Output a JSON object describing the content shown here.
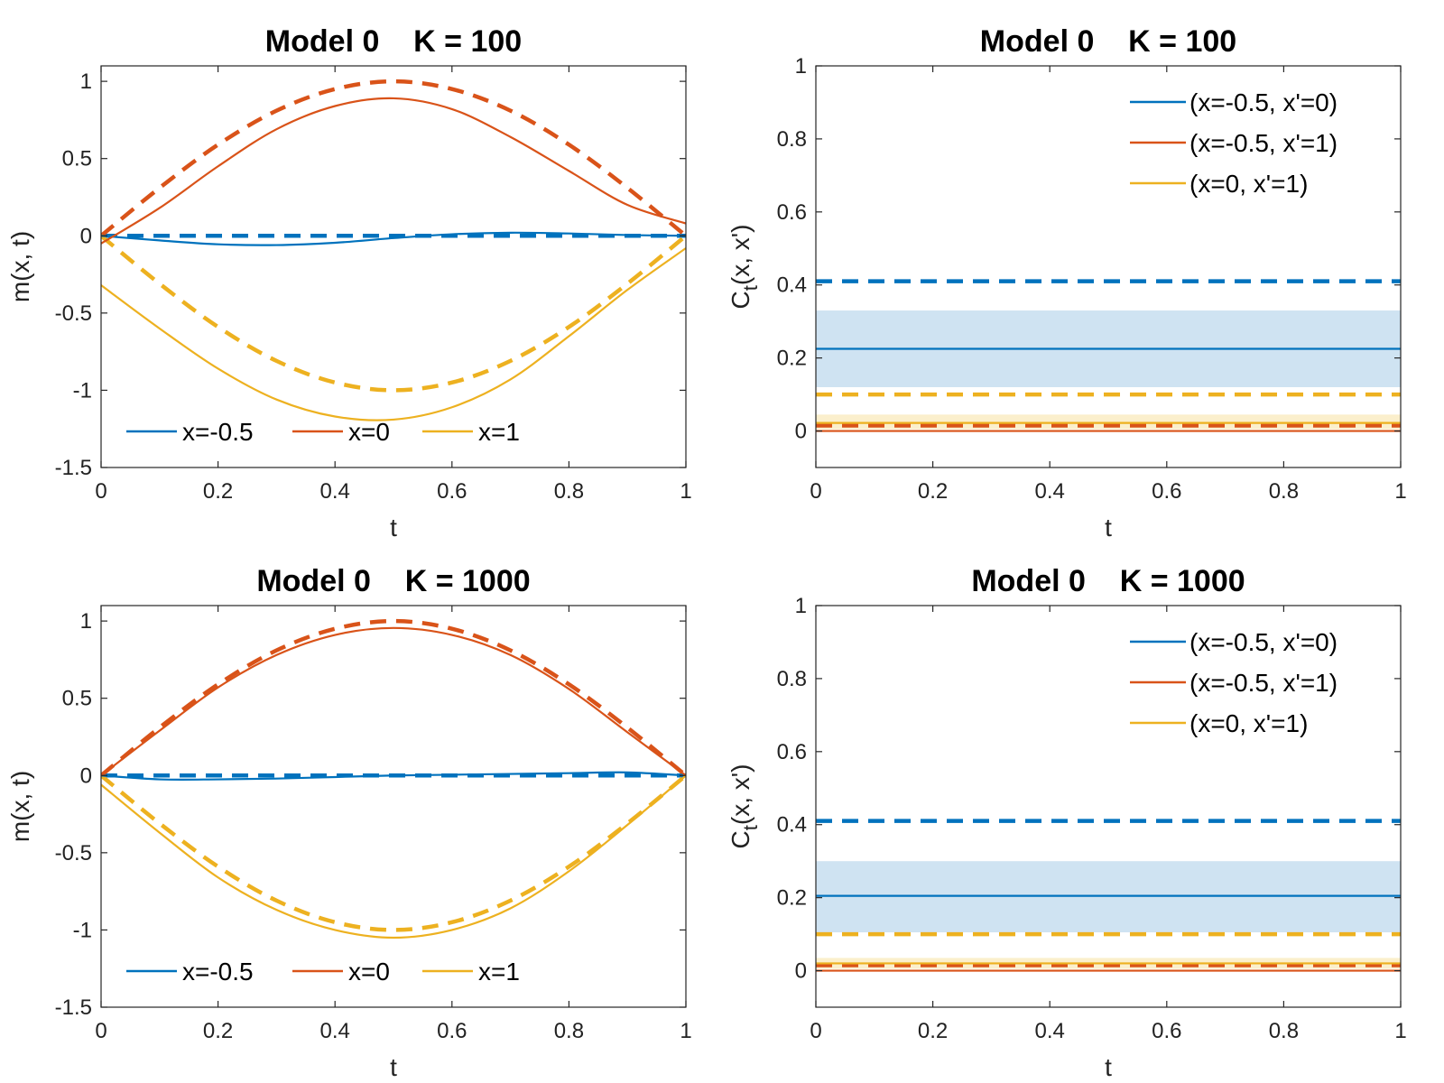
{
  "colors": {
    "blue": "#0072BD",
    "red": "#D95319",
    "yellow": "#EDB120",
    "band_blue": "#cfe3f2",
    "band_red": "#f7dccf",
    "band_yellow": "#fbefcc"
  },
  "chart_data": [
    {
      "type": "line",
      "title": "Model 0    K = 100",
      "xlabel": "t",
      "ylabel": "m(x, t)",
      "xlim": [
        0,
        1
      ],
      "ylim": [
        -1.5,
        1.1
      ],
      "xticks": [
        0,
        0.2,
        0.4,
        0.6,
        0.8,
        1
      ],
      "xtick_labels": [
        "0",
        "0.2",
        "0.4",
        "0.6",
        "0.8",
        "1"
      ],
      "yticks": [
        1,
        0.5,
        0,
        -0.5,
        -1,
        -1.5
      ],
      "ytick_labels": [
        "1",
        "0.5",
        "0",
        "-0.5",
        "-1",
        "-1.5"
      ],
      "legend_position": "bottom",
      "x": [
        0,
        0.1,
        0.2,
        0.3,
        0.4,
        0.5,
        0.6,
        0.7,
        0.8,
        0.9,
        1
      ],
      "series": [
        {
          "name": "x=-0.5",
          "color": "blue",
          "style": "solid",
          "values": [
            0,
            -0.03,
            -0.055,
            -0.06,
            -0.045,
            -0.015,
            0.01,
            0.02,
            0.015,
            0.005,
            0
          ]
        },
        {
          "name": "x=0",
          "color": "red",
          "style": "solid",
          "values": [
            -0.05,
            0.18,
            0.45,
            0.69,
            0.84,
            0.89,
            0.82,
            0.64,
            0.42,
            0.2,
            0.08
          ]
        },
        {
          "name": "x=1",
          "color": "yellow",
          "style": "solid",
          "values": [
            -0.32,
            -0.6,
            -0.86,
            -1.06,
            -1.17,
            -1.19,
            -1.11,
            -0.93,
            -0.65,
            -0.35,
            -0.08
          ]
        },
        {
          "name": "",
          "color": "blue",
          "style": "dashed",
          "values": [
            0,
            0,
            0,
            0,
            0,
            0,
            0,
            0,
            0,
            0,
            0
          ]
        },
        {
          "name": "",
          "color": "red",
          "style": "dashed",
          "values": [
            0,
            0.31,
            0.59,
            0.81,
            0.95,
            1.0,
            0.95,
            0.81,
            0.59,
            0.31,
            0
          ]
        },
        {
          "name": "",
          "color": "yellow",
          "style": "dashed",
          "values": [
            0,
            -0.31,
            -0.59,
            -0.81,
            -0.95,
            -1.0,
            -0.95,
            -0.81,
            -0.59,
            -0.31,
            0
          ]
        }
      ]
    },
    {
      "type": "line",
      "title": "Model 0    K = 100",
      "xlabel": "t",
      "ylabel_main": "C",
      "ylabel_sub": "t",
      "ylabel_rest": "(x, x')",
      "xlim": [
        0,
        1
      ],
      "ylim": [
        -0.1,
        1
      ],
      "xticks": [
        0,
        0.2,
        0.4,
        0.6,
        0.8,
        1
      ],
      "xtick_labels": [
        "0",
        "0.2",
        "0.4",
        "0.6",
        "0.8",
        "1"
      ],
      "yticks": [
        1,
        0.8,
        0.6,
        0.4,
        0.2,
        0
      ],
      "ytick_labels": [
        "1",
        "0.8",
        "0.6",
        "0.4",
        "0.2",
        "0"
      ],
      "legend_position": "top-right",
      "x": [
        0,
        1
      ],
      "bands": [
        {
          "color": "band_blue",
          "low": 0.12,
          "high": 0.33
        },
        {
          "color": "band_yellow",
          "low": 0.005,
          "high": 0.045
        }
      ],
      "series": [
        {
          "name": "(x=-0.5, x'=0)",
          "color": "blue",
          "style": "solid",
          "values": [
            0.225,
            0.225
          ]
        },
        {
          "name": "(x=-0.5, x'=1)",
          "color": "red",
          "style": "solid",
          "values": [
            0.0,
            0.0
          ]
        },
        {
          "name": "(x=0, x'=1)",
          "color": "yellow",
          "style": "solid",
          "values": [
            0.022,
            0.022
          ]
        },
        {
          "name": "",
          "color": "blue",
          "style": "dashed",
          "values": [
            0.41,
            0.41
          ]
        },
        {
          "name": "",
          "color": "yellow",
          "style": "dashed",
          "values": [
            0.1,
            0.1
          ]
        },
        {
          "name": "",
          "color": "red",
          "style": "dashed",
          "values": [
            0.015,
            0.015
          ]
        }
      ]
    },
    {
      "type": "line",
      "title": "Model 0    K = 1000",
      "xlabel": "t",
      "ylabel": "m(x, t)",
      "xlim": [
        0,
        1
      ],
      "ylim": [
        -1.5,
        1.1
      ],
      "xticks": [
        0,
        0.2,
        0.4,
        0.6,
        0.8,
        1
      ],
      "xtick_labels": [
        "0",
        "0.2",
        "0.4",
        "0.6",
        "0.8",
        "1"
      ],
      "yticks": [
        1,
        0.5,
        0,
        -0.5,
        -1,
        -1.5
      ],
      "ytick_labels": [
        "1",
        "0.5",
        "0",
        "-0.5",
        "-1",
        "-1.5"
      ],
      "legend_position": "bottom",
      "x": [
        0,
        0.1,
        0.2,
        0.3,
        0.4,
        0.5,
        0.6,
        0.7,
        0.8,
        0.9,
        1
      ],
      "series": [
        {
          "name": "x=-0.5",
          "color": "blue",
          "style": "solid",
          "values": [
            0,
            -0.025,
            -0.025,
            -0.02,
            -0.01,
            0,
            0.005,
            0.01,
            0.015,
            0.02,
            0
          ]
        },
        {
          "name": "x=0",
          "color": "red",
          "style": "solid",
          "values": [
            0,
            0.29,
            0.57,
            0.78,
            0.91,
            0.955,
            0.91,
            0.78,
            0.56,
            0.28,
            0
          ]
        },
        {
          "name": "x=1",
          "color": "yellow",
          "style": "solid",
          "values": [
            -0.06,
            -0.37,
            -0.66,
            -0.87,
            -1.0,
            -1.05,
            -1.0,
            -0.86,
            -0.62,
            -0.32,
            0
          ]
        },
        {
          "name": "",
          "color": "blue",
          "style": "dashed",
          "values": [
            0,
            0,
            0,
            0,
            0,
            0,
            0,
            0,
            0,
            0,
            0
          ]
        },
        {
          "name": "",
          "color": "red",
          "style": "dashed",
          "values": [
            0,
            0.31,
            0.59,
            0.81,
            0.95,
            1.0,
            0.95,
            0.81,
            0.59,
            0.31,
            0
          ]
        },
        {
          "name": "",
          "color": "yellow",
          "style": "dashed",
          "values": [
            0,
            -0.31,
            -0.59,
            -0.81,
            -0.95,
            -1.0,
            -0.95,
            -0.81,
            -0.59,
            -0.31,
            0
          ]
        }
      ]
    },
    {
      "type": "line",
      "title": "Model 0    K = 1000",
      "xlabel": "t",
      "ylabel_main": "C",
      "ylabel_sub": "t",
      "ylabel_rest": "(x, x')",
      "xlim": [
        0,
        1
      ],
      "ylim": [
        -0.1,
        1
      ],
      "xticks": [
        0,
        0.2,
        0.4,
        0.6,
        0.8,
        1
      ],
      "xtick_labels": [
        "0",
        "0.2",
        "0.4",
        "0.6",
        "0.8",
        "1"
      ],
      "yticks": [
        1,
        0.8,
        0.6,
        0.4,
        0.2,
        0
      ],
      "ytick_labels": [
        "1",
        "0.8",
        "0.6",
        "0.4",
        "0.2",
        "0"
      ],
      "legend_position": "top-right",
      "x": [
        0,
        1
      ],
      "bands": [
        {
          "color": "band_blue",
          "low": 0.105,
          "high": 0.3
        },
        {
          "color": "band_yellow",
          "low": 0.005,
          "high": 0.035
        }
      ],
      "series": [
        {
          "name": "(x=-0.5, x'=0)",
          "color": "blue",
          "style": "solid",
          "values": [
            0.205,
            0.205
          ]
        },
        {
          "name": "(x=-0.5, x'=1)",
          "color": "red",
          "style": "solid",
          "values": [
            0.0,
            0.0
          ]
        },
        {
          "name": "(x=0, x'=1)",
          "color": "yellow",
          "style": "solid",
          "values": [
            0.02,
            0.02
          ]
        },
        {
          "name": "",
          "color": "blue",
          "style": "dashed",
          "values": [
            0.41,
            0.41
          ]
        },
        {
          "name": "",
          "color": "yellow",
          "style": "dashed",
          "values": [
            0.1,
            0.1
          ]
        },
        {
          "name": "",
          "color": "red",
          "style": "dashed",
          "values": [
            0.015,
            0.015
          ]
        }
      ]
    }
  ]
}
